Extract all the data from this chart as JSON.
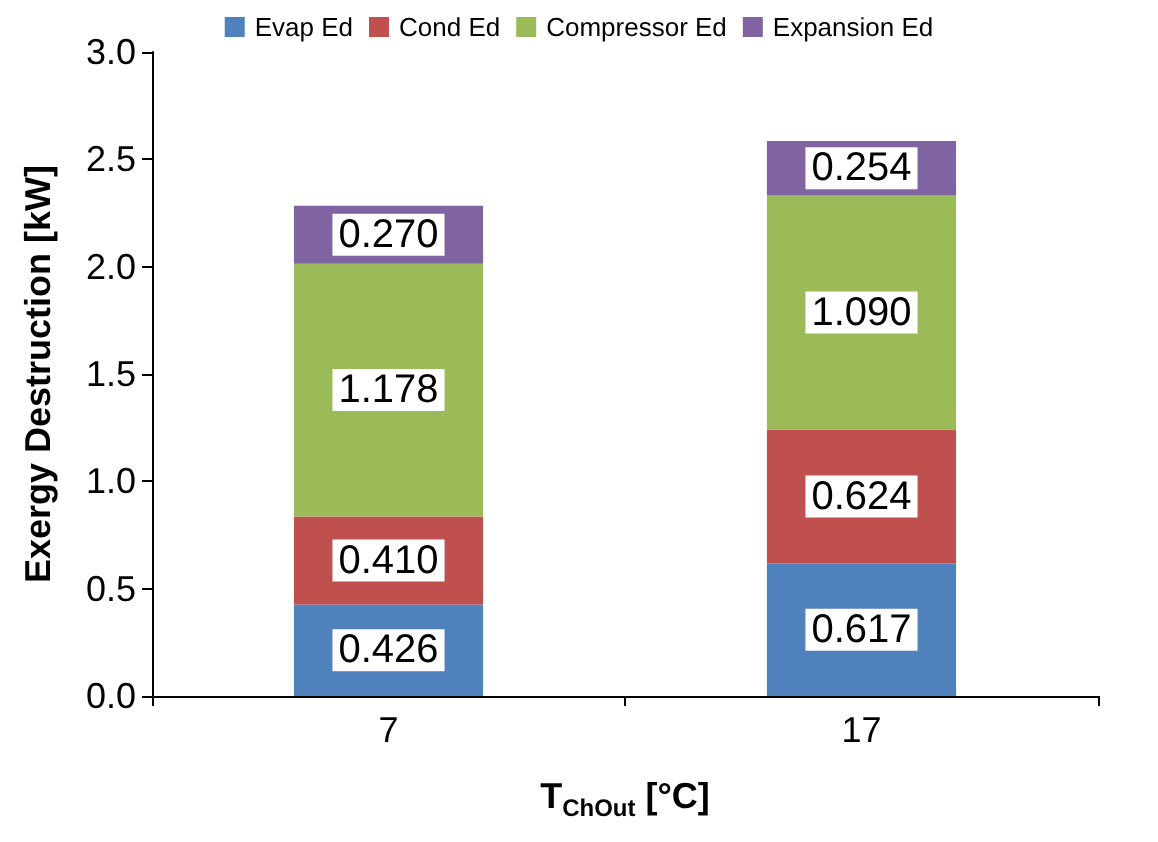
{
  "chart_data": {
    "type": "bar",
    "stacked": true,
    "xlabel": "T$_{ChOut}$ [°C]",
    "ylabel": "Exergy Destruction [kW]",
    "categories": [
      "7",
      "17"
    ],
    "series": [
      {
        "name": "Evap Ed",
        "color": "#4f81bd",
        "values": [
          0.426,
          0.617
        ],
        "value_labels": [
          "0.426",
          "0.617"
        ]
      },
      {
        "name": "Cond Ed",
        "color": "#c0504d",
        "values": [
          0.41,
          0.624
        ],
        "value_labels": [
          "0.410",
          "0.624"
        ]
      },
      {
        "name": "Compressor Ed",
        "color": "#9bbb59",
        "values": [
          1.178,
          1.09
        ],
        "value_labels": [
          "1.178",
          "1.090"
        ]
      },
      {
        "name": "Expansion Ed",
        "color": "#8064a2",
        "values": [
          0.27,
          0.254
        ],
        "value_labels": [
          "0.270",
          "0.254"
        ]
      }
    ],
    "ylim": [
      0,
      3
    ],
    "yticks": [
      {
        "value": 0,
        "label": "0.0"
      },
      {
        "value": 0.5,
        "label": "0.5"
      },
      {
        "value": 1,
        "label": "1.0"
      },
      {
        "value": 1.5,
        "label": "1.5"
      },
      {
        "value": 2,
        "label": "2.0"
      },
      {
        "value": 2.5,
        "label": "2.5"
      },
      {
        "value": 3,
        "label": "3.0"
      }
    ],
    "grid": false,
    "legend": "top"
  }
}
